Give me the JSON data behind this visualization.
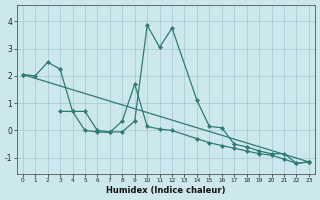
{
  "xlabel": "Humidex (Indice chaleur)",
  "bg_color": "#cde8ec",
  "grid_color": "#aacdd4",
  "line_color": "#2d7b72",
  "xlim": [
    -0.5,
    23.5
  ],
  "ylim": [
    -1.6,
    4.6
  ],
  "xticks": [
    0,
    1,
    2,
    3,
    4,
    5,
    6,
    7,
    8,
    9,
    10,
    11,
    12,
    13,
    14,
    15,
    16,
    17,
    18,
    19,
    20,
    21,
    22,
    23
  ],
  "yticks": [
    -1,
    0,
    1,
    2,
    3,
    4
  ],
  "series": [
    {
      "x": [
        0,
        23
      ],
      "y": [
        2.05,
        -1.15
      ]
    },
    {
      "x": [
        0,
        1,
        2,
        3,
        4,
        5,
        6,
        7,
        8,
        9,
        10,
        11,
        12,
        14,
        15,
        16,
        17,
        18,
        19,
        20,
        21,
        22,
        23
      ],
      "y": [
        2.05,
        2.0,
        2.5,
        2.25,
        0.7,
        0.7,
        0.0,
        -0.05,
        -0.05,
        0.35,
        3.85,
        3.05,
        3.75,
        1.1,
        0.15,
        0.1,
        -0.5,
        -0.6,
        -0.75,
        -0.85,
        -0.85,
        -1.2,
        -1.15
      ]
    },
    {
      "x": [
        3,
        4,
        5,
        6,
        7,
        8,
        9,
        10,
        11,
        12,
        14,
        15,
        16,
        17,
        18,
        19,
        20,
        21,
        22,
        23
      ],
      "y": [
        0.7,
        0.7,
        0.0,
        -0.05,
        -0.07,
        0.35,
        1.7,
        0.15,
        0.05,
        0.0,
        -0.3,
        -0.45,
        -0.55,
        -0.65,
        -0.75,
        -0.85,
        -0.9,
        -1.05,
        -1.2,
        -1.15
      ]
    }
  ]
}
